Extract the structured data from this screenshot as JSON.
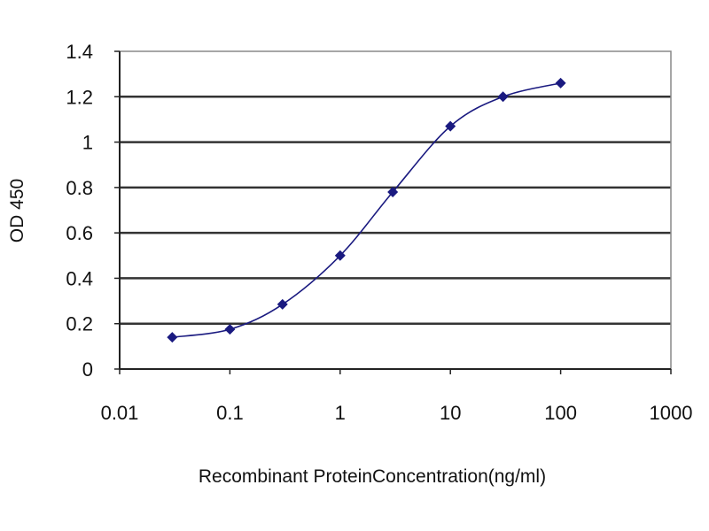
{
  "chart_data": {
    "type": "line",
    "title": "",
    "xlabel": "Recombinant ProteinConcentration(ng/ml)",
    "ylabel": "OD 450",
    "x_scale": "log",
    "xlim": [
      0.01,
      1000
    ],
    "ylim": [
      0,
      1.4
    ],
    "x_ticks": [
      "0.01",
      "0.1",
      "1",
      "10",
      "100",
      "1000"
    ],
    "y_ticks": [
      "0",
      "0.2",
      "0.4",
      "0.6",
      "0.8",
      "1",
      "1.2",
      "1.4"
    ],
    "grid": "horizontal",
    "series": [
      {
        "x": [
          0.03,
          0.1,
          0.3,
          1,
          3,
          10,
          30,
          100
        ],
        "y": [
          0.14,
          0.175,
          0.285,
          0.5,
          0.78,
          1.07,
          1.2,
          1.26
        ],
        "color": "#1a1a80",
        "marker": "diamond",
        "smooth": true
      }
    ]
  }
}
